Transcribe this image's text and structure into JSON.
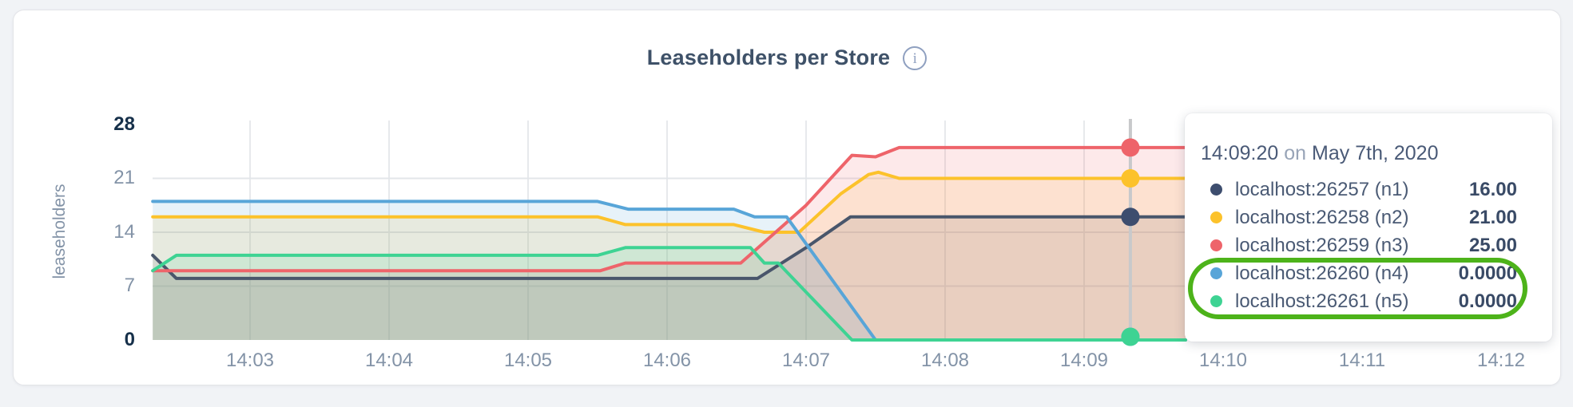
{
  "card": {
    "title": "Leaseholders per Store",
    "info_icon": "i"
  },
  "tooltip": {
    "time": "14:09:20",
    "on_word": "on",
    "date": "May 7th, 2020",
    "rows": [
      {
        "label": "localhost:26257 (n1)",
        "value": "16.00",
        "color": "#3d4d6e",
        "highlighted": false
      },
      {
        "label": "localhost:26258 (n2)",
        "value": "21.00",
        "color": "#fcc22b",
        "highlighted": false
      },
      {
        "label": "localhost:26259 (n3)",
        "value": "25.00",
        "color": "#ee646a",
        "highlighted": false
      },
      {
        "label": "localhost:26260 (n4)",
        "value": "0.0000",
        "color": "#58a5d8",
        "highlighted": true
      },
      {
        "label": "localhost:26261 (n5)",
        "value": "0.0000",
        "color": "#3ed393",
        "highlighted": true
      }
    ],
    "annotation_color": "#4db31a"
  },
  "chart_data": {
    "type": "area",
    "title": "Leaseholders per Store",
    "ylabel": "leaseholders",
    "xlabel": "",
    "grid": true,
    "legend_position": "tooltip",
    "ylim": [
      0,
      28
    ],
    "y_ticks": [
      {
        "label": "28",
        "value": 28,
        "bold": true
      },
      {
        "label": "21",
        "value": 21,
        "bold": false
      },
      {
        "label": "14",
        "value": 14,
        "bold": false
      },
      {
        "label": "7",
        "value": 7,
        "bold": false
      },
      {
        "label": "0",
        "value": 0,
        "bold": true
      }
    ],
    "x_ticks": [
      "14:03",
      "14:04",
      "14:05",
      "14:06",
      "14:07",
      "14:08",
      "14:09",
      "14:10",
      "14:11",
      "14:12"
    ],
    "x_unit": "minutes after 14:00",
    "xlim": [
      2.3,
      12.35
    ],
    "series": [
      {
        "name": "localhost:26257 (n1)",
        "color": "#49566b",
        "dot_color": "#3d4d6e",
        "points": [
          [
            2.3,
            11
          ],
          [
            2.47,
            8
          ],
          [
            6.65,
            8
          ],
          [
            7.0,
            12
          ],
          [
            7.32,
            16
          ],
          [
            9.73,
            16
          ]
        ]
      },
      {
        "name": "localhost:26258 (n2)",
        "color": "#fcc22b",
        "dot_color": "#fcc22b",
        "points": [
          [
            2.3,
            16
          ],
          [
            5.5,
            16
          ],
          [
            5.7,
            15
          ],
          [
            6.48,
            15
          ],
          [
            6.7,
            14
          ],
          [
            6.95,
            14
          ],
          [
            7.25,
            19
          ],
          [
            7.45,
            21.5
          ],
          [
            7.52,
            21.8
          ],
          [
            7.67,
            21
          ],
          [
            9.73,
            21
          ]
        ]
      },
      {
        "name": "localhost:26259 (n3)",
        "color": "#ee646a",
        "dot_color": "#ee646a",
        "points": [
          [
            2.3,
            9
          ],
          [
            5.52,
            9
          ],
          [
            5.7,
            10
          ],
          [
            6.53,
            10
          ],
          [
            7.0,
            17.5
          ],
          [
            7.33,
            24
          ],
          [
            7.5,
            23.8
          ],
          [
            7.67,
            25
          ],
          [
            9.73,
            25
          ]
        ]
      },
      {
        "name": "localhost:26260 (n4)",
        "color": "#58a5d8",
        "dot_color": "#58a5d8",
        "points": [
          [
            2.3,
            18
          ],
          [
            5.5,
            18
          ],
          [
            5.72,
            17
          ],
          [
            6.48,
            17
          ],
          [
            6.63,
            16
          ],
          [
            6.86,
            16
          ],
          [
            7.5,
            0
          ],
          [
            9.73,
            0
          ]
        ]
      },
      {
        "name": "localhost:26261 (n5)",
        "color": "#3ed393",
        "dot_color": "#3ed393",
        "points": [
          [
            2.3,
            9
          ],
          [
            2.47,
            11
          ],
          [
            5.5,
            11
          ],
          [
            5.7,
            12
          ],
          [
            6.6,
            12
          ],
          [
            6.7,
            10
          ],
          [
            6.8,
            10
          ],
          [
            7.33,
            0
          ],
          [
            9.73,
            0
          ]
        ]
      }
    ],
    "hover": {
      "time_label": "14:09:20",
      "t": 9.333,
      "values": [
        16,
        21,
        25,
        0,
        0
      ]
    }
  }
}
